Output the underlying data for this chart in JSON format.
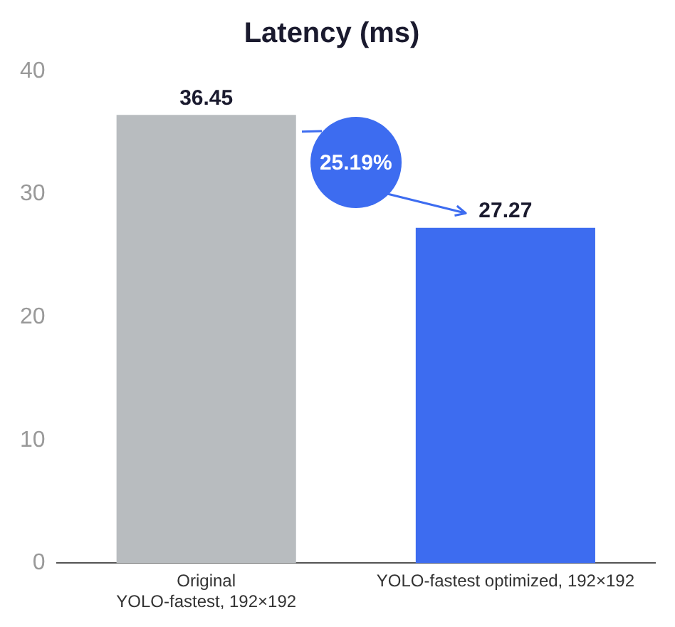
{
  "chart_data": {
    "type": "bar",
    "title": "Latency (ms)",
    "categories": [
      "Original\nYOLO-fastest, 192×192",
      "YOLO-fastest optimized, 192×192"
    ],
    "values": [
      36.45,
      27.27
    ],
    "colors": [
      "#b8bcbf",
      "#3d6cf0"
    ],
    "ylim": [
      0,
      40
    ],
    "yticks": [
      0,
      10,
      20,
      30,
      40
    ],
    "grid": false,
    "data_labels": true,
    "annotations": [
      "25.19%"
    ]
  }
}
